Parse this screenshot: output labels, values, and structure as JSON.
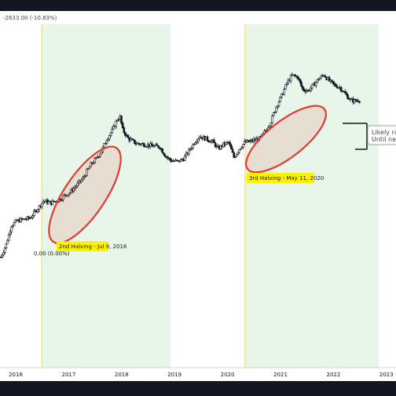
{
  "header": {
    "change_text": "-2633.00 (-10.83%)"
  },
  "chart_data": {
    "type": "candlestick",
    "x_axis_ticks": [
      "2016",
      "2017",
      "2018",
      "2019",
      "2020",
      "2021",
      "2022",
      "2023"
    ],
    "halvings": [
      {
        "label": "2nd Halving - Jul 9, 2016",
        "date": "2016-07-09"
      },
      {
        "label": "3rd Halving - May 11, 2020",
        "date": "2020-05-11"
      }
    ],
    "shaded_periods": [
      {
        "from": "2016-07-09",
        "to": "2018-12-15",
        "color": "#e8f5e9"
      },
      {
        "from": "2020-05-11",
        "to": "2022-11-20",
        "color": "#e8f5e9"
      }
    ],
    "price_label": "0.00 (0.00%)",
    "note_lines": [
      "Likely ran",
      "Until nex"
    ],
    "highlight_color": "#e53935",
    "halving_label_color": "#fff200",
    "candle_color": "#131722",
    "grid": false,
    "series": [
      {
        "values": [
          [
            2015.75,
            20
          ],
          [
            2015.85,
            50
          ],
          [
            2015.95,
            95
          ],
          [
            2016.05,
            105
          ],
          [
            2016.15,
            108
          ],
          [
            2016.3,
            112
          ],
          [
            2016.45,
            135
          ],
          [
            2016.55,
            152
          ],
          [
            2016.7,
            148
          ],
          [
            2016.85,
            155
          ],
          [
            2016.95,
            165
          ],
          [
            2017.05,
            172
          ],
          [
            2017.15,
            185
          ],
          [
            2017.3,
            205
          ],
          [
            2017.45,
            238
          ],
          [
            2017.55,
            252
          ],
          [
            2017.65,
            270
          ],
          [
            2017.75,
            298
          ],
          [
            2017.85,
            318
          ],
          [
            2017.95,
            345
          ],
          [
            2018.0,
            350
          ],
          [
            2018.05,
            320
          ],
          [
            2018.15,
            300
          ],
          [
            2018.3,
            288
          ],
          [
            2018.45,
            286
          ],
          [
            2018.6,
            282
          ],
          [
            2018.75,
            280
          ],
          [
            2018.85,
            260
          ],
          [
            2018.95,
            248
          ],
          [
            2019.1,
            245
          ],
          [
            2019.2,
            252
          ],
          [
            2019.3,
            270
          ],
          [
            2019.4,
            290
          ],
          [
            2019.5,
            305
          ],
          [
            2019.6,
            300
          ],
          [
            2019.75,
            292
          ],
          [
            2019.85,
            275
          ],
          [
            2019.95,
            285
          ],
          [
            2020.05,
            290
          ],
          [
            2020.15,
            255
          ],
          [
            2020.25,
            275
          ],
          [
            2020.35,
            290
          ],
          [
            2020.45,
            292
          ],
          [
            2020.55,
            296
          ],
          [
            2020.65,
            300
          ],
          [
            2020.75,
            318
          ],
          [
            2020.85,
            340
          ],
          [
            2020.95,
            375
          ],
          [
            2021.05,
            400
          ],
          [
            2021.15,
            430
          ],
          [
            2021.25,
            448
          ],
          [
            2021.35,
            445
          ],
          [
            2021.45,
            415
          ],
          [
            2021.55,
            412
          ],
          [
            2021.65,
            425
          ],
          [
            2021.75,
            440
          ],
          [
            2021.85,
            450
          ],
          [
            2021.95,
            435
          ],
          [
            2022.05,
            425
          ],
          [
            2022.15,
            420
          ],
          [
            2022.25,
            405
          ],
          [
            2022.35,
            390
          ],
          [
            2022.45,
            388
          ],
          [
            2022.55,
            392
          ]
        ]
      }
    ]
  }
}
